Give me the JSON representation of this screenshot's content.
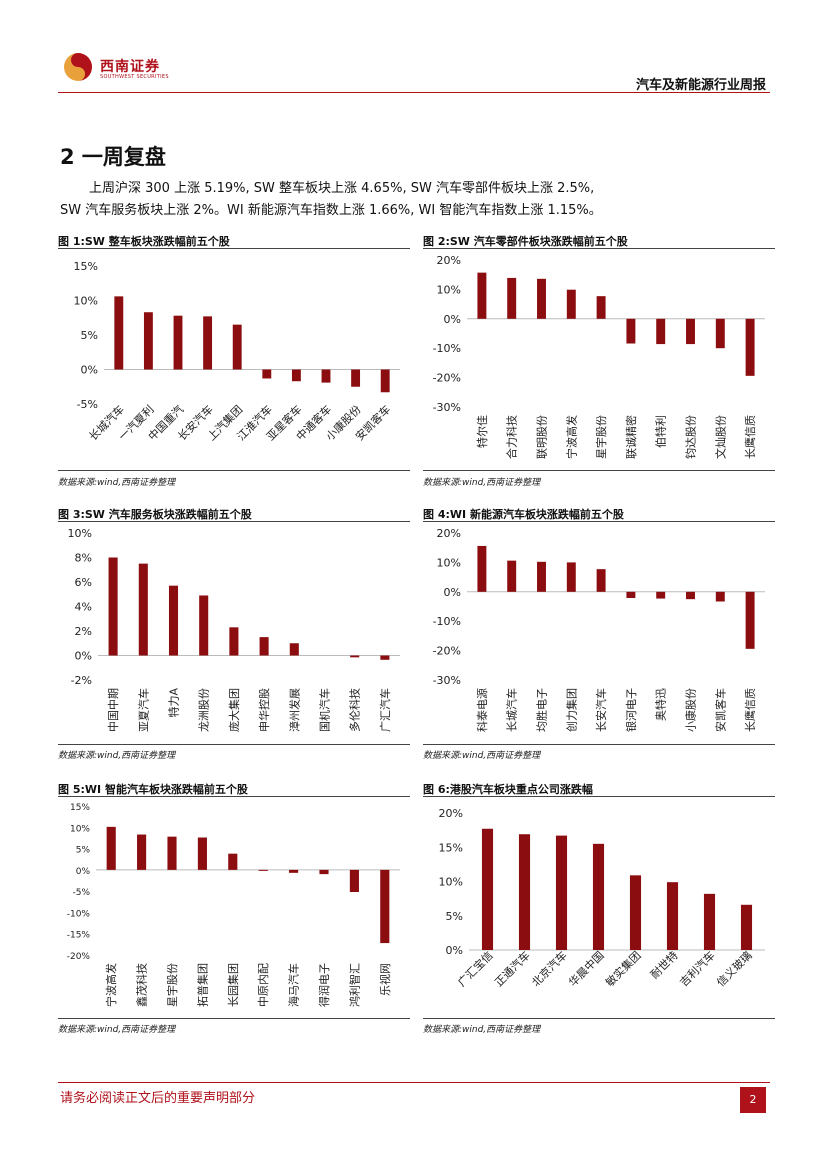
{
  "header": {
    "brand": "西南证券",
    "brand_en": "SOUTHWEST SECURITIES",
    "report_title": "汽车及新能源行业周报"
  },
  "section": {
    "title": "2 一周复盘",
    "para1": "上周沪深 300 上涨 5.19%, SW 整车板块上涨 4.65%, SW 汽车零部件板块上涨 2.5%,",
    "para2": "SW 汽车服务板块上涨 2%。WI 新能源汽车指数上涨 1.66%, WI 智能汽车指数上涨 1.15%。"
  },
  "figures": [
    {
      "title": "图 1:SW 整车板块涨跌幅前五个股",
      "source": "数据来源:wind,西南证券整理"
    },
    {
      "title": "图 2:SW 汽车零部件板块涨跌幅前五个股",
      "source": "数据来源:wind,西南证券整理"
    },
    {
      "title": "图 3:SW 汽车服务板块涨跌幅前五个股",
      "source": "数据来源:wind,西南证券整理"
    },
    {
      "title": "图 4:WI 新能源汽车板块涨跌幅前五个股",
      "source": "数据来源:wind,西南证券整理"
    },
    {
      "title": "图 5:WI 智能汽车板块涨跌幅前五个股",
      "source": "数据来源:wind,西南证券整理"
    },
    {
      "title": "图 6:港股汽车板块重点公司涨跌幅",
      "source": "数据来源:wind,西南证券整理"
    }
  ],
  "chart_data": [
    {
      "type": "bar",
      "title": "图 1:SW 整车板块涨跌幅前五个股",
      "categories": [
        "长城汽车",
        "一汽夏利",
        "中国重汽",
        "长安汽车",
        "上汽集团",
        "江淮汽车",
        "亚星客车",
        "中通客车",
        "小康股份",
        "安凯客车"
      ],
      "values": [
        10.6,
        8.3,
        7.8,
        7.7,
        6.5,
        -1.3,
        -1.7,
        -1.9,
        -2.5,
        -3.3
      ],
      "ylim": [
        -5,
        15
      ],
      "yticks": [
        -5,
        0,
        5,
        10,
        15
      ],
      "tick_format": "%",
      "labels_rotation": "diagonal",
      "grid": false,
      "color": "#8b0d0f"
    },
    {
      "type": "bar",
      "title": "图 2:SW 汽车零部件板块涨跌幅前五个股",
      "categories": [
        "特尔佳",
        "合力科技",
        "联明股份",
        "宁波高发",
        "星宇股份",
        "联诚精密",
        "伯特利",
        "钧达股份",
        "文灿股份",
        "长鹰信质"
      ],
      "values": [
        15.7,
        13.9,
        13.6,
        9.9,
        7.7,
        -8.4,
        -8.6,
        -8.6,
        -10.0,
        -19.4
      ],
      "ylim": [
        -30,
        20
      ],
      "yticks": [
        -30,
        -20,
        -10,
        0,
        10,
        20
      ],
      "tick_format": "%",
      "labels_rotation": "vertical",
      "grid": false,
      "color": "#8b0d0f"
    },
    {
      "type": "bar",
      "title": "图 3:SW 汽车服务板块涨跌幅前五个股",
      "categories": [
        "中国中期",
        "亚夏汽车",
        "特力A",
        "龙洲股份",
        "庞大集团",
        "申华控股",
        "漳州发展",
        "国机汽车",
        "多伦科技",
        "广汇汽车"
      ],
      "values": [
        8.0,
        7.5,
        5.7,
        4.9,
        2.3,
        1.5,
        1.0,
        0.0,
        -0.15,
        -0.35
      ],
      "ylim": [
        -2,
        10
      ],
      "yticks": [
        -2,
        0,
        2,
        4,
        6,
        8,
        10
      ],
      "tick_format": "%",
      "labels_rotation": "vertical",
      "grid": false,
      "color": "#8b0d0f"
    },
    {
      "type": "bar",
      "title": "图 4:WI 新能源汽车板块涨跌幅前五个股",
      "categories": [
        "科泰电源",
        "长城汽车",
        "均胜电子",
        "创力集团",
        "长安汽车",
        "银河电子",
        "奥特迅",
        "小康股份",
        "安凯客车",
        "长鹰信质"
      ],
      "values": [
        15.6,
        10.6,
        10.2,
        10.0,
        7.7,
        -2.1,
        -2.3,
        -2.5,
        -3.3,
        -19.4
      ],
      "ylim": [
        -30,
        20
      ],
      "yticks": [
        -30,
        -20,
        -10,
        0,
        10,
        20
      ],
      "tick_format": "%",
      "labels_rotation": "vertical",
      "grid": false,
      "color": "#8b0d0f"
    },
    {
      "type": "bar",
      "title": "图 5:WI 智能汽车板块涨跌幅前五个股",
      "categories": [
        "宁波高发",
        "鑫茂科技",
        "星宇股份",
        "拓普集团",
        "长园集团",
        "中原内配",
        "海马汽车",
        "得润电子",
        "鸿利智汇",
        "乐视网"
      ],
      "values": [
        10.1,
        8.3,
        7.8,
        7.6,
        3.8,
        -0.2,
        -0.7,
        -1.0,
        -5.2,
        -17.2
      ],
      "ylim": [
        -20,
        15
      ],
      "yticks": [
        -20,
        -15,
        -10,
        -5,
        0,
        5,
        10,
        15
      ],
      "tick_format": "%",
      "labels_rotation": "vertical",
      "grid": false,
      "color": "#8b0d0f"
    },
    {
      "type": "bar",
      "title": "图 6:港股汽车板块重点公司涨跌幅",
      "categories": [
        "广汇宝信",
        "正通汽车",
        "北京汽车",
        "华晨中国",
        "敏实集团",
        "耐世特",
        "吉利汽车",
        "信义玻璃"
      ],
      "values": [
        17.7,
        16.9,
        16.7,
        15.5,
        10.9,
        9.9,
        8.2,
        6.6
      ],
      "ylim": [
        0,
        20
      ],
      "yticks": [
        0,
        5,
        10,
        15,
        20
      ],
      "tick_format": "%",
      "labels_rotation": "diagonal",
      "grid": false,
      "color": "#8b0d0f"
    }
  ],
  "footer": {
    "disclaimer": "请务必阅读正文后的重要声明部分",
    "page": "2"
  }
}
